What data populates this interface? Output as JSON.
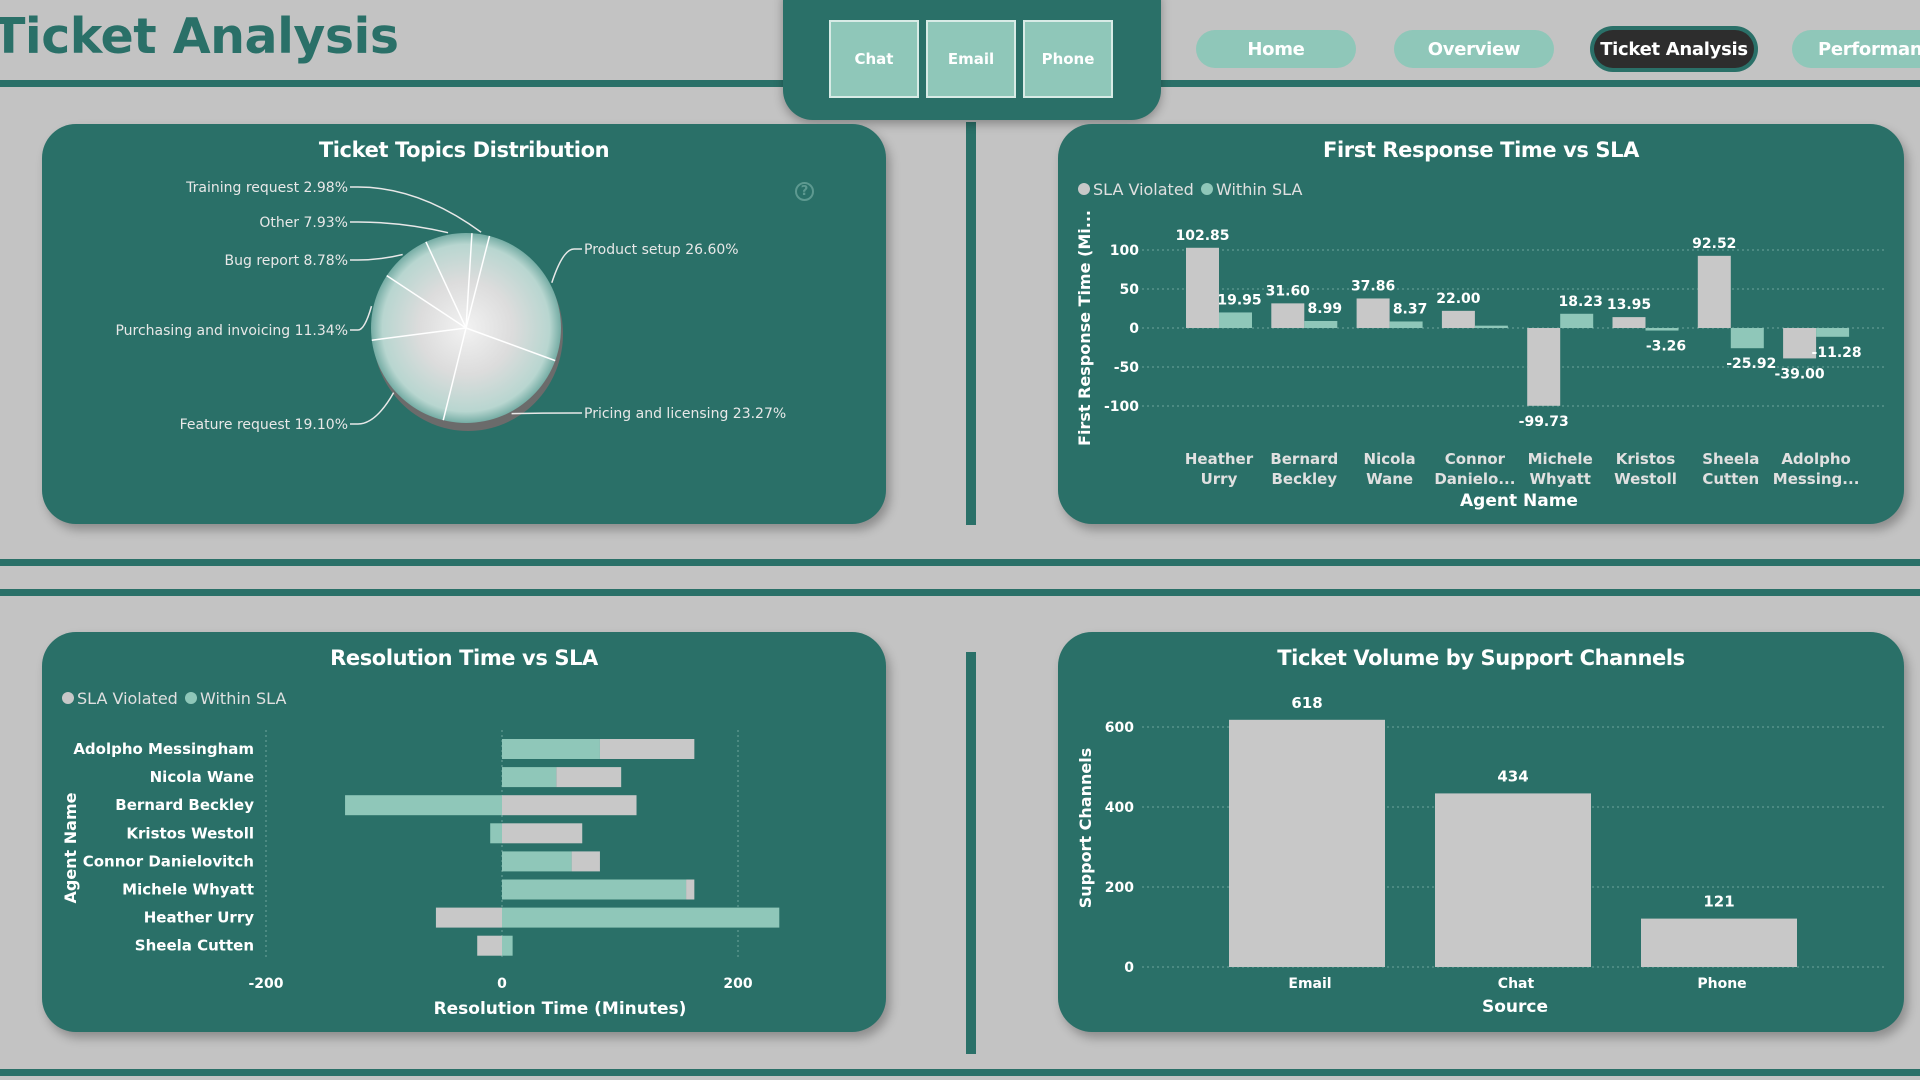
{
  "page": {
    "title": "Ticket Analysis"
  },
  "slicer": {
    "buttons": [
      "Chat",
      "Email",
      "Phone"
    ]
  },
  "nav": {
    "home": "Home",
    "overview": "Overview",
    "ticket_analysis": "Ticket Analysis",
    "performance": "Performance"
  },
  "colors": {
    "background": "#c3c3c3",
    "teal": "#2a7068",
    "mint": "#8fc7b9",
    "grey_bar": "#c8c8c8",
    "active_nav": "#2d2d2d"
  },
  "icons": {
    "help": "question-circle-icon"
  },
  "cards": {
    "topics": {
      "title": "Ticket Topics Distribution",
      "help_glyph": "?"
    },
    "frt": {
      "title": "First Response Time vs SLA"
    },
    "resolution": {
      "title": "Resolution Time vs SLA"
    },
    "volume": {
      "title": "Ticket Volume by Support Channels"
    }
  },
  "chart_data": [
    {
      "id": "topics",
      "type": "pie",
      "title": "Ticket Topics Distribution",
      "slices": [
        {
          "label": "Product setup",
          "value": 26.6,
          "display": "26.60%"
        },
        {
          "label": "Pricing and licensing",
          "value": 23.27,
          "display": "23.27%"
        },
        {
          "label": "Feature request",
          "value": 19.1,
          "display": "19.10%"
        },
        {
          "label": "Purchasing and invoicing",
          "value": 11.34,
          "display": "11.34%"
        },
        {
          "label": "Bug report",
          "value": 8.78,
          "display": "8.78%"
        },
        {
          "label": "Other",
          "value": 7.93,
          "display": "7.93%"
        },
        {
          "label": "Training request",
          "value": 2.98,
          "display": "2.98%"
        }
      ]
    },
    {
      "id": "frt",
      "type": "bar",
      "title": "First Response Time vs SLA",
      "xlabel": "Agent Name",
      "ylabel": "First Response Time (Mi...",
      "legend": [
        "SLA Violated",
        "Within SLA"
      ],
      "ylim": [
        -120,
        120
      ],
      "yticks": [
        100,
        50,
        0,
        -50,
        -100
      ],
      "categories": [
        [
          "Heather",
          "Urry"
        ],
        [
          "Bernard",
          "Beckley"
        ],
        [
          "Nicola",
          "Wane"
        ],
        [
          "Connor",
          "Danielo..."
        ],
        [
          "Michele",
          "Whyatt"
        ],
        [
          "Kristos",
          "Westoll"
        ],
        [
          "Sheela",
          "Cutten"
        ],
        [
          "Adolpho",
          "Messing..."
        ]
      ],
      "series": [
        {
          "name": "SLA Violated",
          "color": "#c8c8c8",
          "values": [
            102.85,
            31.6,
            37.86,
            22.0,
            -99.73,
            13.95,
            92.52,
            -39.0
          ],
          "labels": [
            "102.85",
            "31.60",
            "37.86",
            "22.00",
            "-99.73",
            "13.95",
            "92.52",
            "-39.00"
          ]
        },
        {
          "name": "Within SLA",
          "color": "#8fc7b9",
          "values": [
            19.95,
            8.99,
            8.37,
            3.0,
            18.23,
            -3.26,
            -25.92,
            -11.28
          ],
          "labels": [
            "19.95",
            "8.99",
            "8.37",
            "",
            "18.23",
            "-3.26",
            "-25.92",
            "-11.28"
          ]
        }
      ]
    },
    {
      "id": "resolution",
      "type": "bar",
      "orientation": "horizontal",
      "stacked": true,
      "title": "Resolution Time vs SLA",
      "xlabel": "Resolution Time (Minutes)",
      "ylabel": "Agent Name",
      "legend": [
        "SLA Violated",
        "Within SLA"
      ],
      "xlim": [
        -200,
        250
      ],
      "xticks": [
        -200,
        0,
        200
      ],
      "categories": [
        "Adolpho Messingham",
        "Nicola Wane",
        "Bernard Beckley",
        "Kristos Westoll",
        "Connor Danielovitch",
        "Michele Whyatt",
        "Heather Urry",
        "Sheela Cutten"
      ],
      "series": [
        {
          "name": "Within SLA",
          "color": "#8fc7b9",
          "values": [
            83,
            46,
            -133,
            -10,
            59,
            156,
            235,
            9
          ]
        },
        {
          "name": "SLA Violated",
          "color": "#c8c8c8",
          "values": [
            80,
            55,
            114,
            68,
            24,
            7,
            -56,
            -21
          ]
        }
      ]
    },
    {
      "id": "volume",
      "type": "bar",
      "title": "Ticket Volume by Support Channels",
      "xlabel": "Source",
      "ylabel": "Support Channels",
      "ylim": [
        0,
        680
      ],
      "yticks": [
        0,
        200,
        400,
        600
      ],
      "categories": [
        "Email",
        "Chat",
        "Phone"
      ],
      "values": [
        618,
        434,
        121
      ],
      "labels": [
        "618",
        "434",
        "121"
      ]
    }
  ]
}
